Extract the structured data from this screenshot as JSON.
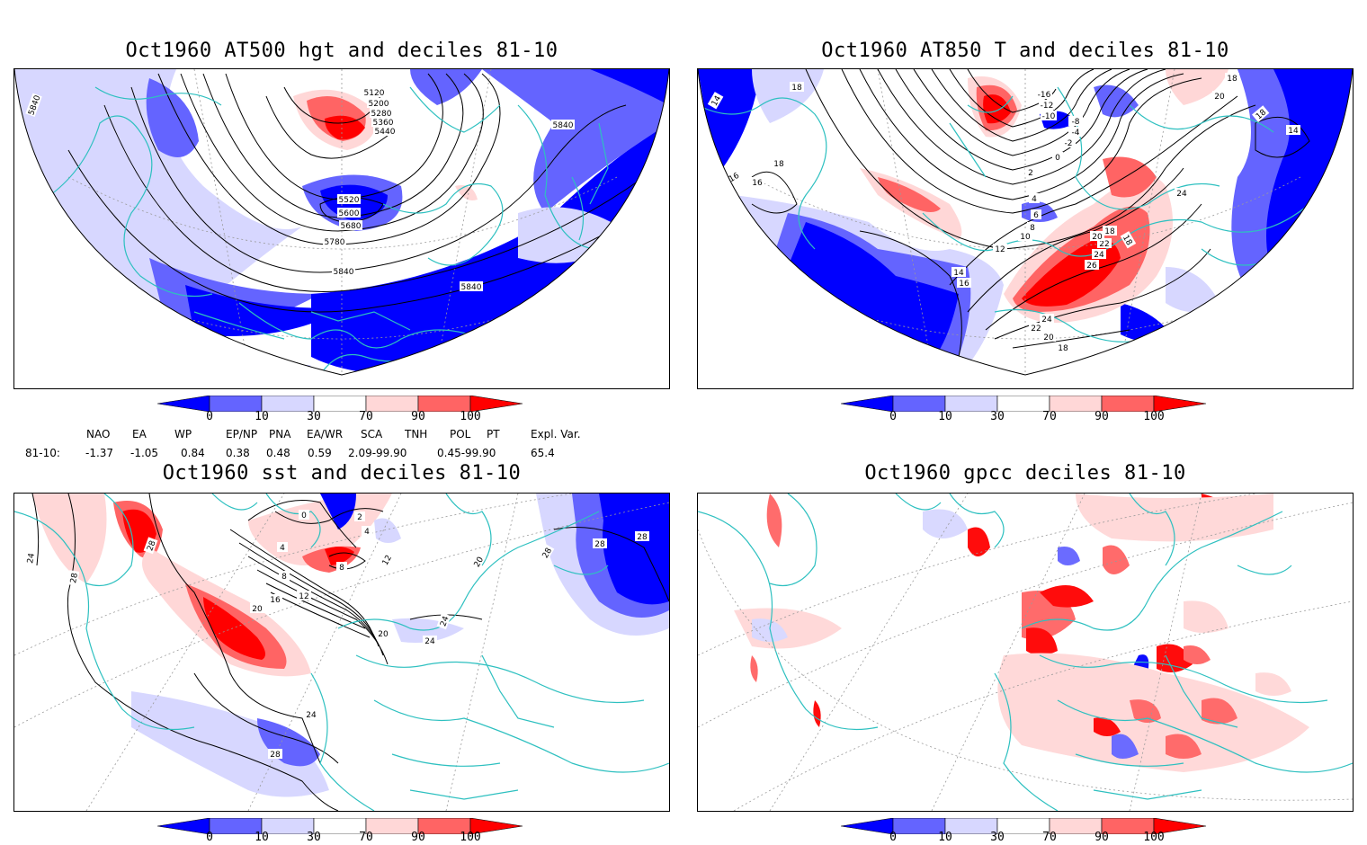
{
  "panels": {
    "tl": {
      "title": "Oct1960 AT500 hgt and deciles 81-10",
      "contour_labels": [
        "5840",
        "5120",
        "5200",
        "5280",
        "5360",
        "5440",
        "5840",
        "5520",
        "5600",
        "5680",
        "5780",
        "5840",
        "5840",
        "5840"
      ]
    },
    "tr": {
      "title": "Oct1960 AT850 T and deciles 81-10",
      "contour_labels": [
        "14",
        "18",
        "16",
        "18",
        "-16",
        "-12",
        "-10",
        "-8",
        "-4",
        "-2",
        "0",
        "2",
        "20",
        "18",
        "14",
        "18",
        "16",
        "4",
        "6",
        "8",
        "10",
        "12",
        "14",
        "16",
        "24",
        "18",
        "18",
        "22",
        "20",
        "24",
        "26",
        "24",
        "22",
        "20",
        "18",
        "18"
      ]
    },
    "bl": {
      "title": "Oct1960 sst and deciles 81-10",
      "contour_labels": [
        "24",
        "28",
        "28",
        "4",
        "0",
        "2",
        "4",
        "8",
        "8",
        "12",
        "16",
        "20",
        "12",
        "20",
        "24",
        "24",
        "20",
        "28",
        "28",
        "28",
        "24",
        "28"
      ]
    },
    "br": {
      "title": "Oct1960 gpcc deciles 81-10"
    }
  },
  "colorbar": {
    "ticks": [
      "0",
      "10",
      "30",
      "70",
      "90",
      "100"
    ],
    "colors": [
      "#0000ff",
      "#6464ff",
      "#d7d7ff",
      "#ffffff",
      "#ffd7d7",
      "#ff6464",
      "#ff0000"
    ]
  },
  "indices": {
    "headers": [
      "NAO",
      "EA",
      "WP",
      "EP/NP",
      "PNA",
      "EA/WR",
      "SCA",
      "TNH",
      "POL",
      "PT",
      "Expl. Var."
    ],
    "row_label": "81-10:",
    "values": [
      "-1.37",
      "-1.05",
      "0.84",
      "0.38",
      "0.48",
      "0.59",
      "2.09-99.90",
      "0.45-99.90",
      "65.4"
    ]
  },
  "colors": {
    "coast": "#2ec0c0",
    "contour": "#000000",
    "grid": "#9a9a9a"
  }
}
